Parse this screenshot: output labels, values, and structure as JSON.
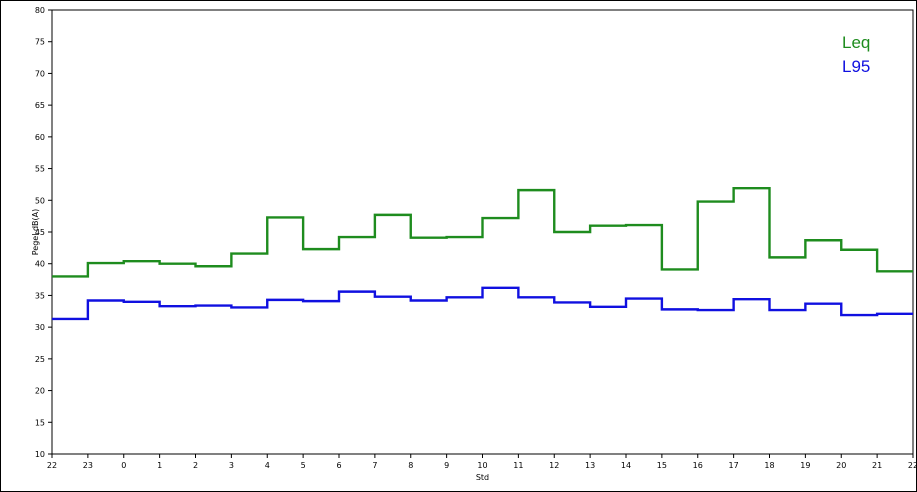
{
  "chart_data": {
    "type": "line",
    "step": true,
    "xlabel": "Std",
    "ylabel": "Pegel dB(A)",
    "ylim": [
      10,
      80
    ],
    "yticks": [
      10,
      15,
      20,
      25,
      30,
      35,
      40,
      45,
      50,
      55,
      60,
      65,
      70,
      75,
      80
    ],
    "x_tick_labels": [
      "22",
      "23",
      "0",
      "1",
      "2",
      "3",
      "4",
      "5",
      "6",
      "7",
      "8",
      "9",
      "10",
      "11",
      "12",
      "13",
      "14",
      "15",
      "16",
      "17",
      "18",
      "19",
      "20",
      "21",
      "22"
    ],
    "grid": true,
    "legend_position": "top-right",
    "series": [
      {
        "name": "Leq",
        "color": "#1e8c1e",
        "values": [
          38.0,
          40.1,
          40.4,
          40.0,
          39.6,
          41.6,
          47.3,
          42.3,
          44.2,
          47.7,
          44.1,
          44.2,
          47.2,
          51.6,
          45.0,
          46.0,
          46.1,
          39.1,
          49.8,
          51.9,
          41.0,
          43.7,
          42.2,
          38.8
        ]
      },
      {
        "name": "L95",
        "color": "#1010e0",
        "values": [
          31.3,
          34.2,
          34.0,
          33.3,
          33.4,
          33.1,
          34.3,
          34.1,
          35.6,
          34.8,
          34.2,
          34.7,
          36.2,
          34.7,
          33.9,
          33.2,
          34.5,
          32.8,
          32.7,
          34.4,
          32.7,
          33.7,
          31.9,
          32.1
        ]
      }
    ]
  }
}
